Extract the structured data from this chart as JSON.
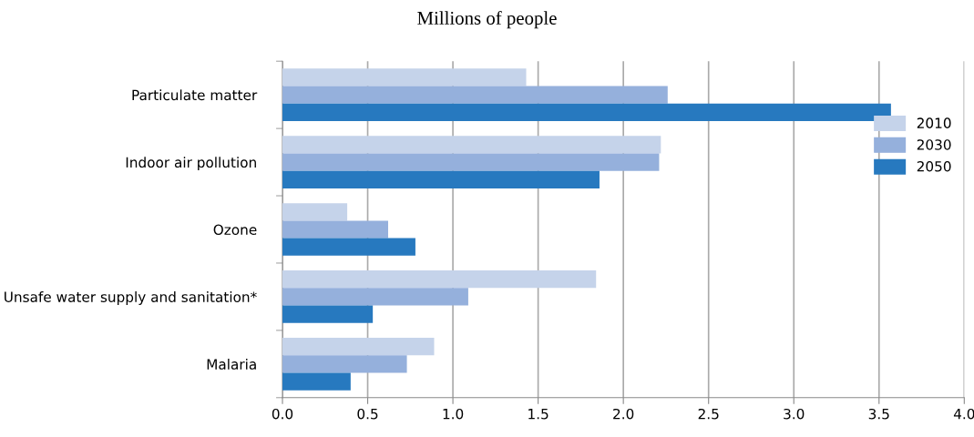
{
  "chart_data": {
    "type": "bar",
    "orientation": "horizontal",
    "title": "Millions of people",
    "categories": [
      "Particulate matter",
      "Indoor air pollution",
      "Ozone",
      "Unsafe water supply and sanitation*",
      "Malaria"
    ],
    "series": [
      {
        "name": "2010",
        "color": "#c5d3ea",
        "values": [
          1.43,
          2.22,
          0.38,
          1.84,
          0.89
        ]
      },
      {
        "name": "2030",
        "color": "#95b0dc",
        "values": [
          2.26,
          2.21,
          0.62,
          1.09,
          0.73
        ]
      },
      {
        "name": "2050",
        "color": "#2779bf",
        "values": [
          3.57,
          1.86,
          0.78,
          0.53,
          0.4
        ]
      }
    ],
    "xlim": [
      0,
      4.0
    ],
    "xticks": [
      {
        "value": 0,
        "label": "0.0"
      },
      0.5,
      {
        "value": 1,
        "label": "1.0"
      },
      1.5,
      {
        "value": 2,
        "label": "2.0"
      },
      2.5,
      {
        "value": 3,
        "label": "3.0"
      },
      3.5,
      {
        "value": 4,
        "label": "4.0"
      }
    ],
    "grid": "x",
    "legend": "right"
  }
}
